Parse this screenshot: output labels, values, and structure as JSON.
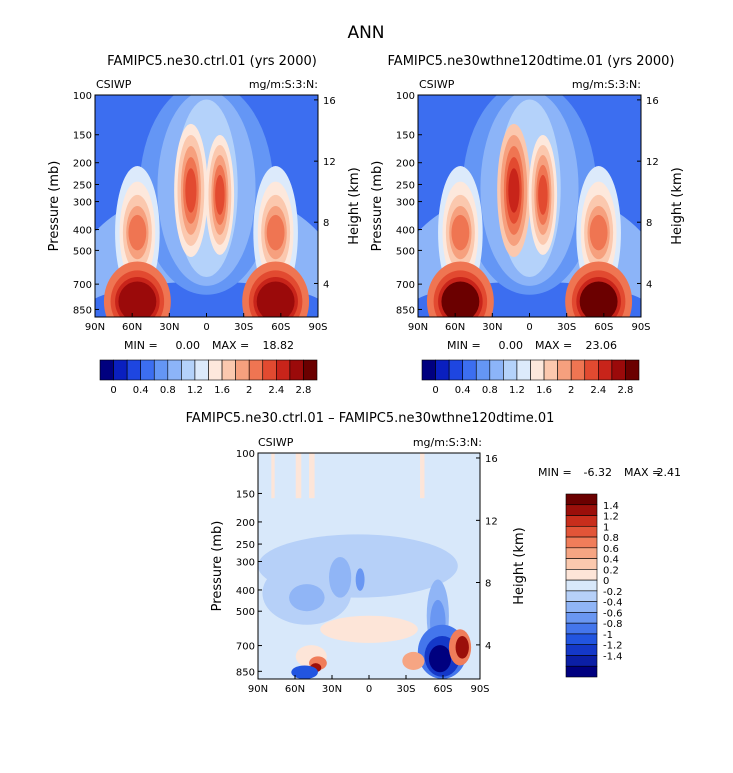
{
  "title": "ANN",
  "colors": {
    "abs_scale": [
      "#00007f",
      "#0a1fbf",
      "#1e46e0",
      "#3c6ef0",
      "#6496f5",
      "#8cb4f8",
      "#b4d2fa",
      "#dceafb",
      "#fde8dc",
      "#fbc8ae",
      "#f6a07e",
      "#ef7552",
      "#e24a30",
      "#c8241a",
      "#9b0a0a",
      "#6b0000"
    ],
    "diff_scale": [
      "#00007f",
      "#0b1fa6",
      "#1438c8",
      "#2255e0",
      "#4476ec",
      "#6a97f2",
      "#90b5f6",
      "#b6d0f8",
      "#d8e8fa",
      "#fde5d8",
      "#fbc9ae",
      "#f6a583",
      "#f07d5a",
      "#e25538",
      "#c82e1c",
      "#9b0f0a",
      "#6b0000"
    ]
  },
  "chart_data": [
    {
      "type": "heatmap",
      "panel": "ctrl",
      "title": "FAMIPC5.ne30.ctrl.01 (yrs 2000)",
      "left_label": "CSIWP",
      "right_label": "mg/m:S:3:N:",
      "ylabel": "Pressure (mb)",
      "y2label": "Height (km)",
      "x_ticks": [
        "90N",
        "60N",
        "30N",
        "0",
        "30S",
        "60S",
        "90S"
      ],
      "y_ticks": [
        "100",
        "150",
        "200",
        "250",
        "300",
        "400",
        "500",
        "700",
        "850"
      ],
      "y2_ticks": [
        "16",
        "12",
        "8",
        "4"
      ],
      "min_label": "MIN =",
      "min_value": "0.00",
      "max_label": "MAX =",
      "max_value": "18.82",
      "colorbar_labels": [
        "0",
        "0.4",
        "0.8",
        "1.2",
        "1.6",
        "2",
        "2.4",
        "2.8"
      ]
    },
    {
      "type": "heatmap",
      "panel": "test",
      "title": "FAMIPC5.ne30wthne120dtime.01 (yrs 2000)",
      "left_label": "CSIWP",
      "right_label": "mg/m:S:3:N:",
      "ylabel": "Pressure (mb)",
      "y2label": "Height (km)",
      "x_ticks": [
        "90N",
        "60N",
        "30N",
        "0",
        "30S",
        "60S",
        "90S"
      ],
      "y_ticks": [
        "100",
        "150",
        "200",
        "250",
        "300",
        "400",
        "500",
        "700",
        "850"
      ],
      "y2_ticks": [
        "16",
        "12",
        "8",
        "4"
      ],
      "min_label": "MIN =",
      "min_value": "0.00",
      "max_label": "MAX =",
      "max_value": "23.06",
      "colorbar_labels": [
        "0",
        "0.4",
        "0.8",
        "1.2",
        "1.6",
        "2",
        "2.4",
        "2.8"
      ]
    },
    {
      "type": "heatmap",
      "panel": "diff",
      "title": "FAMIPC5.ne30.ctrl.01 – FAMIPC5.ne30wthne120dtime.01",
      "left_label": "CSIWP",
      "right_label": "mg/m:S:3:N:",
      "ylabel": "Pressure (mb)",
      "y2label": "Height (km)",
      "x_ticks": [
        "90N",
        "60N",
        "30N",
        "0",
        "30S",
        "60S",
        "90S"
      ],
      "y_ticks": [
        "100",
        "150",
        "200",
        "250",
        "300",
        "400",
        "500",
        "700",
        "850"
      ],
      "y2_ticks": [
        "16",
        "12",
        "8",
        "4"
      ],
      "min_label": "MIN =",
      "min_value": "-6.32",
      "max_label": "MAX =",
      "max_value": "2.41",
      "colorbar_labels": [
        "1.4",
        "1.2",
        "1",
        "0.8",
        "0.6",
        "0.4",
        "0.2",
        "0",
        "-0.2",
        "-0.4",
        "-0.6",
        "-0.8",
        "-1",
        "-1.2",
        "-1.4"
      ]
    }
  ]
}
